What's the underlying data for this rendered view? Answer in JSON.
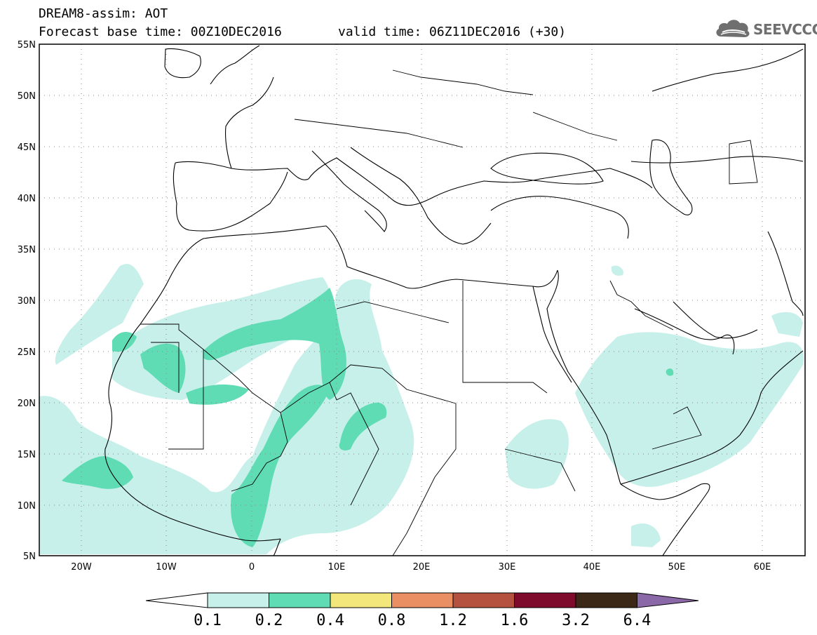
{
  "header": {
    "title": "DREAM8-assim: AOT",
    "base_time": "Forecast base time: 00Z10DEC2016",
    "valid_time": "valid time: 06Z11DEC2016 (+30)"
  },
  "logo": {
    "text": "SEEVCCC",
    "icon": "cloud-icon"
  },
  "map": {
    "lon_range": [
      -25,
      65
    ],
    "lat_range": [
      5,
      55
    ],
    "lat_labels": [
      "55N",
      "50N",
      "45N",
      "40N",
      "35N",
      "30N",
      "25N",
      "20N",
      "15N",
      "10N",
      "5N"
    ],
    "lon_labels": [
      "20W",
      "10W",
      "0",
      "10E",
      "20E",
      "30E",
      "40E",
      "50E",
      "60E"
    ],
    "grid": "dotted",
    "land_color": "#ffffff",
    "coast_color": "#000000"
  },
  "colorbar": {
    "levels": [
      "0.1",
      "0.2",
      "0.4",
      "0.8",
      "1.2",
      "1.6",
      "3.2",
      "6.4"
    ],
    "colors": [
      "#c7f0ea",
      "#5fdcb3",
      "#f3e77c",
      "#ea8e64",
      "#b4523f",
      "#7e0a2c",
      "#3c2816",
      "#8b68a8"
    ],
    "under_color": "#ffffff"
  }
}
